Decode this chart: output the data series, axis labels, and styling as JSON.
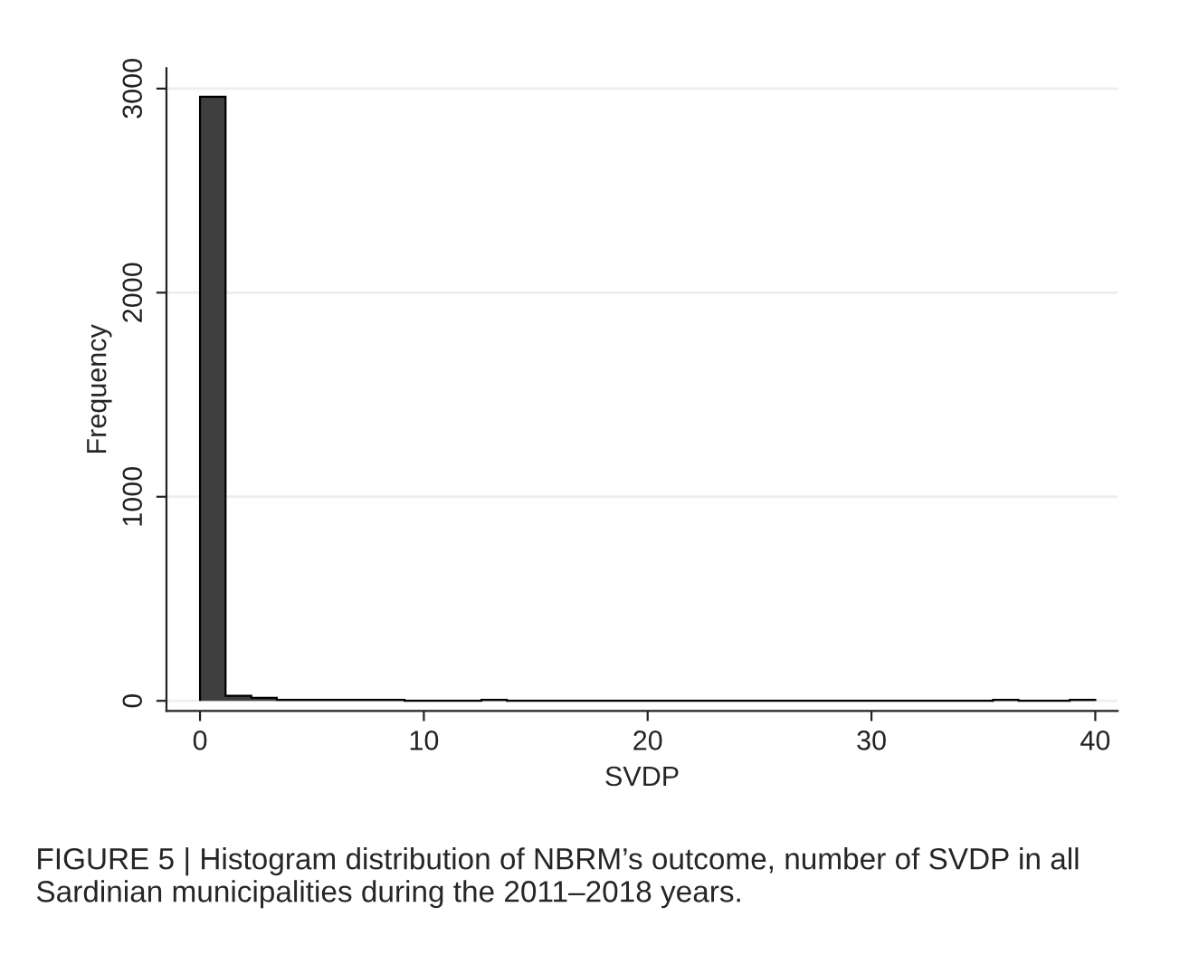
{
  "chart_data": {
    "type": "histogram",
    "xlabel": "SVDP",
    "ylabel": "Frequency",
    "bins": [
      0,
      1.14,
      2.29,
      3.43,
      4.57,
      5.71,
      6.86,
      8,
      9.14,
      10.29,
      11.43,
      12.57,
      13.71,
      14.86,
      16,
      17.14,
      18.29,
      19.43,
      20.57,
      21.71,
      22.86,
      24,
      25.14,
      26.29,
      27.43,
      28.57,
      29.71,
      30.86,
      32,
      33.14,
      34.29,
      35.43,
      36.57,
      37.71,
      38.86,
      40
    ],
    "values": [
      2960,
      25,
      15,
      5,
      5,
      5,
      5,
      5,
      0,
      0,
      0,
      5,
      0,
      0,
      0,
      0,
      0,
      0,
      0,
      0,
      0,
      0,
      0,
      0,
      0,
      0,
      0,
      0,
      0,
      0,
      0,
      5,
      0,
      0,
      5
    ],
    "color": "#3f3f3f",
    "xlim": [
      -1.5,
      41
    ],
    "ylim": [
      -50,
      3100
    ],
    "xticks": [
      0,
      10,
      20,
      30,
      40
    ],
    "yticks": [
      0,
      1000,
      2000,
      3000
    ],
    "grid": "y",
    "annotations": [
      "FIGURE 5 | Histogram distribution of NBRM’s outcome, number of SVDP in all Sardinian municipalities during the 2011–2018 years."
    ]
  }
}
